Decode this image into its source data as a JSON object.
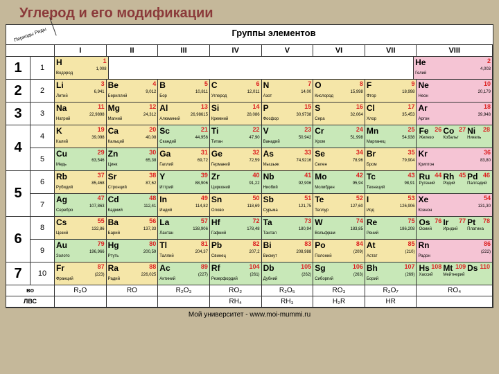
{
  "title": "Углерод и его модификации",
  "corner": "Периоды Ряды",
  "groups_label": "Группы элементов",
  "footer": "Мой университет - www.moi-mummi.ru",
  "roman": [
    "I",
    "II",
    "III",
    "IV",
    "V",
    "VI",
    "VII",
    "VIII"
  ],
  "periods": [
    {
      "num": "1",
      "subs": [
        {
          "n": "1",
          "cells": [
            {
              "sym": "H",
              "num": "1",
              "mass": "1,008",
              "name": "Водород",
              "cls": "yellow"
            },
            {
              "span": true,
              "cls": "empty"
            },
            {
              "sym": "He",
              "num": "2",
              "mass": "4,003",
              "name": "Гелий",
              "cls": "pink",
              "wide": true
            }
          ]
        }
      ]
    },
    {
      "num": "2",
      "subs": [
        {
          "n": "2",
          "cells": [
            {
              "sym": "Li",
              "num": "3",
              "mass": "6,941",
              "name": "Литий",
              "cls": "yellow"
            },
            {
              "sym": "Be",
              "num": "4",
              "mass": "9,012",
              "name": "Бериллий",
              "cls": "yellow"
            },
            {
              "sym": "B",
              "num": "5",
              "mass": "10,811",
              "name": "Бор",
              "cls": "yellow"
            },
            {
              "sym": "C",
              "num": "6",
              "mass": "12,011",
              "name": "Углерод",
              "cls": "yellow"
            },
            {
              "sym": "N",
              "num": "7",
              "mass": "14,00",
              "name": "Азот",
              "cls": "yellow"
            },
            {
              "sym": "O",
              "num": "8",
              "mass": "15,998",
              "name": "Кислород",
              "cls": "yellow"
            },
            {
              "sym": "F",
              "num": "9",
              "mass": "18,998",
              "name": "Фтор",
              "cls": "yellow"
            },
            {
              "sym": "Ne",
              "num": "10",
              "mass": "20,179",
              "name": "Неон",
              "cls": "pink",
              "wide": true
            }
          ]
        }
      ]
    },
    {
      "num": "3",
      "subs": [
        {
          "n": "3",
          "cells": [
            {
              "sym": "Na",
              "num": "11",
              "mass": "22,9898",
              "name": "Натрий",
              "cls": "yellow"
            },
            {
              "sym": "Mg",
              "num": "12",
              "mass": "24,312",
              "name": "Магний",
              "cls": "yellow"
            },
            {
              "sym": "Al",
              "num": "13",
              "mass": "26,98615",
              "name": "Алюминий",
              "cls": "yellow"
            },
            {
              "sym": "Si",
              "num": "14",
              "mass": "28,086",
              "name": "Кремний",
              "cls": "yellow"
            },
            {
              "sym": "P",
              "num": "15",
              "mass": "30,9738",
              "name": "Фосфор",
              "cls": "yellow"
            },
            {
              "sym": "S",
              "num": "16",
              "mass": "32,064",
              "name": "Сера",
              "cls": "yellow"
            },
            {
              "sym": "Cl",
              "num": "17",
              "mass": "35,453",
              "name": "Хлор",
              "cls": "yellow"
            },
            {
              "sym": "Ar",
              "num": "18",
              "mass": "39,948",
              "name": "Аргон",
              "cls": "pink",
              "wide": true
            }
          ]
        }
      ]
    },
    {
      "num": "4",
      "subs": [
        {
          "n": "4",
          "cells": [
            {
              "sym": "K",
              "num": "19",
              "mass": "39,098",
              "name": "Калий",
              "cls": "yellow"
            },
            {
              "sym": "Ca",
              "num": "20",
              "mass": "40,08",
              "name": "Кальций",
              "cls": "yellow"
            },
            {
              "sym": "Sc",
              "num": "21",
              "mass": "44,956",
              "name": "Скандий",
              "cls": "green"
            },
            {
              "sym": "Ti",
              "num": "22",
              "mass": "47,90",
              "name": "Титан",
              "cls": "green"
            },
            {
              "sym": "V",
              "num": "23",
              "mass": "50,942",
              "name": "Ванадий",
              "cls": "green"
            },
            {
              "sym": "Cr",
              "num": "24",
              "mass": "51,998",
              "name": "Хром",
              "cls": "green"
            },
            {
              "sym": "Mn",
              "num": "25",
              "mass": "54,938",
              "name": "Марганец",
              "cls": "green"
            },
            {
              "triple": [
                [
                  "Fe",
                  "26",
                  "Железо"
                ],
                [
                  "Co",
                  "27",
                  "Кобальт"
                ],
                [
                  "Ni",
                  "28",
                  "Никель"
                ]
              ],
              "cls": "green",
              "wide": true
            }
          ]
        },
        {
          "n": "5",
          "cells": [
            {
              "sym": "Cu",
              "num": "29",
              "mass": "63,546",
              "name": "Медь",
              "cls": "green"
            },
            {
              "sym": "Zn",
              "num": "30",
              "mass": "65,38",
              "name": "Цинк",
              "cls": "green"
            },
            {
              "sym": "Ga",
              "num": "31",
              "mass": "69,72",
              "name": "Галлий",
              "cls": "yellow"
            },
            {
              "sym": "Ge",
              "num": "32",
              "mass": "72,59",
              "name": "Германий",
              "cls": "yellow"
            },
            {
              "sym": "As",
              "num": "33",
              "mass": "74,9216",
              "name": "Мышьяк",
              "cls": "yellow"
            },
            {
              "sym": "Se",
              "num": "34",
              "mass": "78,96",
              "name": "Селен",
              "cls": "yellow"
            },
            {
              "sym": "Br",
              "num": "35",
              "mass": "79,904",
              "name": "Бром",
              "cls": "yellow"
            },
            {
              "sym": "Kr",
              "num": "36",
              "mass": "83,80",
              "name": "Криптон",
              "cls": "pink",
              "wide": true
            }
          ]
        }
      ]
    },
    {
      "num": "5",
      "subs": [
        {
          "n": "6",
          "cells": [
            {
              "sym": "Rb",
              "num": "37",
              "mass": "85,468",
              "name": "Рубидий",
              "cls": "yellow"
            },
            {
              "sym": "Sr",
              "num": "38",
              "mass": "87,62",
              "name": "Стронций",
              "cls": "yellow"
            },
            {
              "sym": "Y",
              "num": "39",
              "mass": "88,906",
              "name": "Иттрий",
              "cls": "green"
            },
            {
              "sym": "Zr",
              "num": "40",
              "mass": "91,22",
              "name": "Цирконий",
              "cls": "green"
            },
            {
              "sym": "Nb",
              "num": "41",
              "mass": "92,906",
              "name": "Ниобий",
              "cls": "green"
            },
            {
              "sym": "Mo",
              "num": "42",
              "mass": "95,94",
              "name": "Молибден",
              "cls": "green"
            },
            {
              "sym": "Tc",
              "num": "43",
              "mass": "98,91",
              "name": "Технеций",
              "cls": "green"
            },
            {
              "triple": [
                [
                  "Ru",
                  "44",
                  "Рутений"
                ],
                [
                  "Rh",
                  "45",
                  "Родий"
                ],
                [
                  "Pd",
                  "46",
                  "Палладий"
                ]
              ],
              "cls": "green",
              "wide": true
            }
          ]
        },
        {
          "n": "7",
          "cells": [
            {
              "sym": "Ag",
              "num": "47",
              "mass": "107,863",
              "name": "Серебро",
              "cls": "green"
            },
            {
              "sym": "Cd",
              "num": "48",
              "mass": "112,41",
              "name": "Кадмий",
              "cls": "green"
            },
            {
              "sym": "In",
              "num": "49",
              "mass": "114,82",
              "name": "Индий",
              "cls": "yellow"
            },
            {
              "sym": "Sn",
              "num": "50",
              "mass": "118,69",
              "name": "Олово",
              "cls": "yellow"
            },
            {
              "sym": "Sb",
              "num": "51",
              "mass": "121,75",
              "name": "Сурьма",
              "cls": "yellow"
            },
            {
              "sym": "Te",
              "num": "52",
              "mass": "127,60",
              "name": "Теллур",
              "cls": "yellow"
            },
            {
              "sym": "I",
              "num": "53",
              "mass": "126,906",
              "name": "Иод",
              "cls": "yellow"
            },
            {
              "sym": "Xe",
              "num": "54",
              "mass": "131,30",
              "name": "Ксенон",
              "cls": "pink",
              "wide": true
            }
          ]
        }
      ]
    },
    {
      "num": "6",
      "subs": [
        {
          "n": "8",
          "cells": [
            {
              "sym": "Cs",
              "num": "55",
              "mass": "132,86",
              "name": "Цезий",
              "cls": "yellow"
            },
            {
              "sym": "Ba",
              "num": "56",
              "mass": "137,33",
              "name": "Барий",
              "cls": "yellow"
            },
            {
              "sym": "La",
              "num": "57",
              "mass": "138,906",
              "name": "Лантан",
              "cls": "green"
            },
            {
              "sym": "Hf",
              "num": "72",
              "mass": "178,48",
              "name": "Гафний",
              "cls": "green"
            },
            {
              "sym": "Ta",
              "num": "73",
              "mass": "180,94",
              "name": "Тантал",
              "cls": "green"
            },
            {
              "sym": "W",
              "num": "74",
              "mass": "183,85",
              "name": "Вольфрам",
              "cls": "green"
            },
            {
              "sym": "Re",
              "num": "75",
              "mass": "186,208",
              "name": "Рений",
              "cls": "green"
            },
            {
              "triple": [
                [
                  "Os",
                  "76",
                  "Осмий"
                ],
                [
                  "Ir",
                  "77",
                  "Иридий"
                ],
                [
                  "Pt",
                  "78",
                  "Платина"
                ]
              ],
              "cls": "green",
              "wide": true
            }
          ]
        },
        {
          "n": "9",
          "cells": [
            {
              "sym": "Au",
              "num": "79",
              "mass": "196,966",
              "name": "Золото",
              "cls": "green"
            },
            {
              "sym": "Hg",
              "num": "80",
              "mass": "200,59",
              "name": "Ртуть",
              "cls": "green"
            },
            {
              "sym": "Tl",
              "num": "81",
              "mass": "204,37",
              "name": "Таллий",
              "cls": "yellow"
            },
            {
              "sym": "Pb",
              "num": "82",
              "mass": "207,2",
              "name": "Свинец",
              "cls": "yellow"
            },
            {
              "sym": "Bi",
              "num": "83",
              "mass": "208,988",
              "name": "Висмут",
              "cls": "yellow"
            },
            {
              "sym": "Po",
              "num": "84",
              "mass": "(209)",
              "name": "Полоний",
              "cls": "yellow"
            },
            {
              "sym": "At",
              "num": "85",
              "mass": "(210)",
              "name": "Астат",
              "cls": "yellow"
            },
            {
              "sym": "Rn",
              "num": "86",
              "mass": "(222)",
              "name": "Радон",
              "cls": "pink",
              "wide": true
            }
          ]
        }
      ]
    },
    {
      "num": "7",
      "subs": [
        {
          "n": "10",
          "cells": [
            {
              "sym": "Fr",
              "num": "87",
              "mass": "(223)",
              "name": "Франций",
              "cls": "yellow"
            },
            {
              "sym": "Ra",
              "num": "88",
              "mass": "226,025",
              "name": "Радий",
              "cls": "yellow"
            },
            {
              "sym": "Ac",
              "num": "89",
              "mass": "(227)",
              "name": "Актиний",
              "cls": "green"
            },
            {
              "sym": "Rf",
              "num": "104",
              "mass": "(261)",
              "name": "Резерфордий",
              "cls": "green"
            },
            {
              "sym": "Db",
              "num": "105",
              "mass": "(262)",
              "name": "Дубний",
              "cls": "green"
            },
            {
              "sym": "Sg",
              "num": "106",
              "mass": "(263)",
              "name": "Сиборгий",
              "cls": "green"
            },
            {
              "sym": "Bh",
              "num": "107",
              "mass": "(269)",
              "name": "Борий",
              "cls": "green"
            },
            {
              "triple": [
                [
                  "Hs",
                  "108",
                  "Хассий"
                ],
                [
                  "Mt",
                  "109",
                  "Мейтнерий"
                ],
                [
                  "Ds",
                  "110",
                  ""
                ]
              ],
              "cls": "green",
              "wide": true
            }
          ]
        }
      ]
    }
  ],
  "bottom": [
    {
      "label": "во",
      "cells": [
        "R₂O",
        "RO",
        "R₂O₃",
        "RO₂",
        "R₂O₅",
        "RO₃",
        "R₂O₇",
        "RO₄"
      ]
    },
    {
      "label": "ЛВС",
      "cells": [
        "",
        "",
        "",
        "RH₄",
        "RH₃",
        "H₂R",
        "HR",
        ""
      ]
    }
  ]
}
